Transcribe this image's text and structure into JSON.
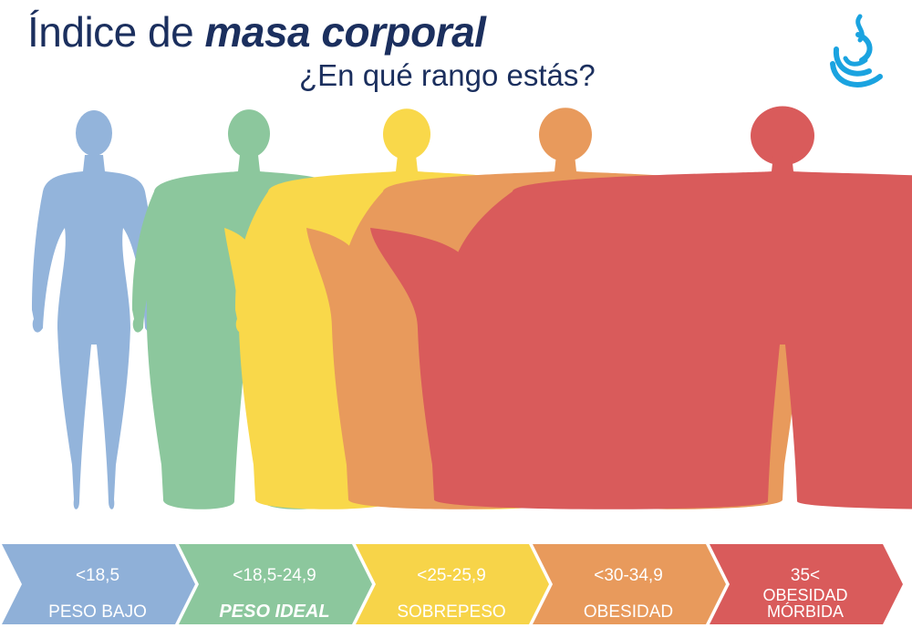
{
  "header": {
    "title_regular": "Índice de",
    "title_bold": "masa corporal",
    "subtitle": "¿En qué rango estás?"
  },
  "categories": [
    {
      "range": "<18,5",
      "label": "PESO BAJO",
      "label2": "",
      "color": "#8fb0d8",
      "figure_color": "#93b4db"
    },
    {
      "range": "<18,5-24,9",
      "label": "PESO IDEAL",
      "label2": "",
      "color": "#8cc79d",
      "figure_color": "#8cc79d"
    },
    {
      "range": "<25-25,9",
      "label": "SOBREPESO",
      "label2": "",
      "color": "#f7d449",
      "figure_color": "#f9d84a"
    },
    {
      "range": "<30-34,9",
      "label": "OBESIDAD",
      "label2": "",
      "color": "#e89a5c",
      "figure_color": "#e89a5c"
    },
    {
      "range": "35<",
      "label": "OBESIDAD",
      "label2": "MÓRBIDA",
      "color": "#d95b5b",
      "figure_color": "#d95b5b"
    }
  ],
  "colors": {
    "title": "#1b2f5e",
    "logo": "#1aa3e0"
  }
}
